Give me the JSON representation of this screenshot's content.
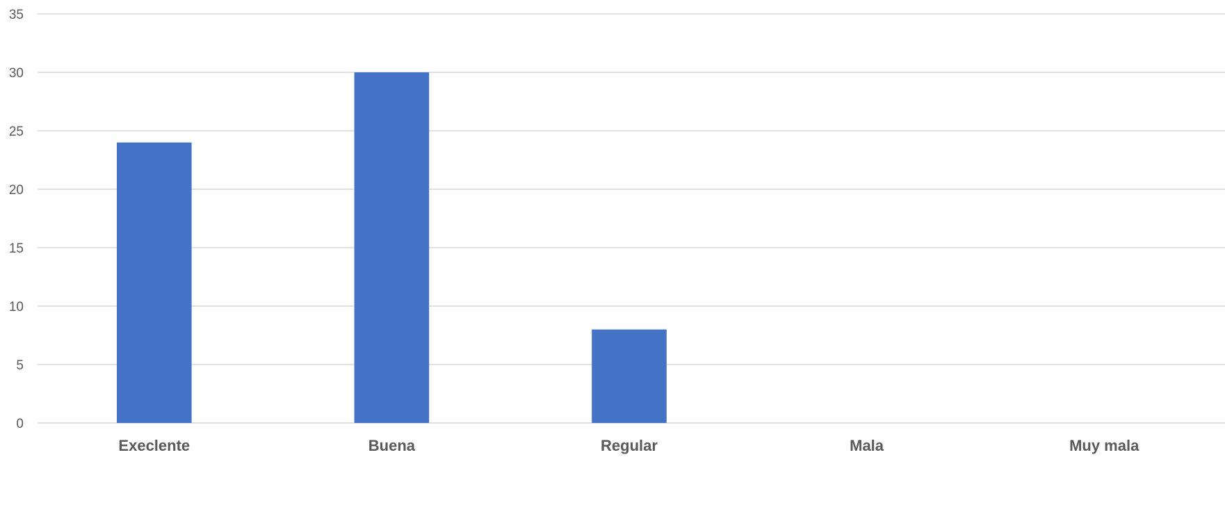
{
  "chart_data": {
    "type": "bar",
    "categories": [
      "Execlente",
      "Buena",
      "Regular",
      "Mala",
      "Muy mala"
    ],
    "values": [
      24,
      30,
      8,
      0,
      0
    ],
    "ylim": [
      0,
      35
    ],
    "yticks": [
      0,
      5,
      10,
      15,
      20,
      25,
      30,
      35
    ],
    "grid": true,
    "legend": "none",
    "bar_color": "#4472c4",
    "gridline_color": "#d9d9d9",
    "tick_label_color": "#595959"
  }
}
